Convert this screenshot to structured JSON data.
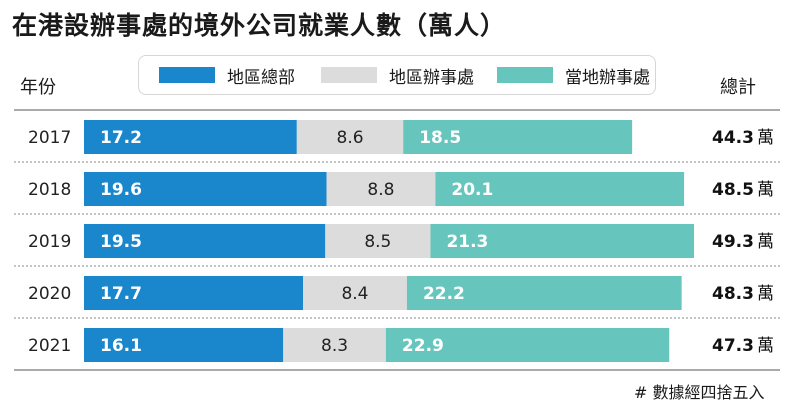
{
  "title": "在港設辦事處的境外公司就業人數（萬人）",
  "header": {
    "year_label": "年份",
    "total_label": "總計"
  },
  "legend": [
    {
      "label": "地區總部",
      "color": "#1a87cc"
    },
    {
      "label": "地區辦事處",
      "color": "#dcdcdc"
    },
    {
      "label": "當地辦事處",
      "color": "#66c5bd"
    }
  ],
  "note": "# 數據經四捨五入",
  "chart_data": {
    "type": "bar",
    "orientation": "horizontal",
    "stacked": true,
    "categories": [
      "2017",
      "2018",
      "2019",
      "2020",
      "2021"
    ],
    "series": [
      {
        "name": "地區總部",
        "values": [
          17.2,
          19.6,
          19.5,
          17.7,
          16.1
        ],
        "color": "#1a87cc",
        "label_color": "#ffffff",
        "label_bold": true
      },
      {
        "name": "地區辦事處",
        "values": [
          8.6,
          8.8,
          8.5,
          8.4,
          8.3
        ],
        "color": "#dcdcdc",
        "label_color": "#222222",
        "label_bold": false
      },
      {
        "name": "當地辦事處",
        "values": [
          18.5,
          20.1,
          21.3,
          22.2,
          22.9
        ],
        "color": "#66c5bd",
        "label_color": "#ffffff",
        "label_bold": true
      }
    ],
    "totals": [
      "44.3",
      "48.5",
      "49.3",
      "48.3",
      "47.3"
    ],
    "total_unit": "萬",
    "xlim": [
      0,
      49.3
    ]
  }
}
